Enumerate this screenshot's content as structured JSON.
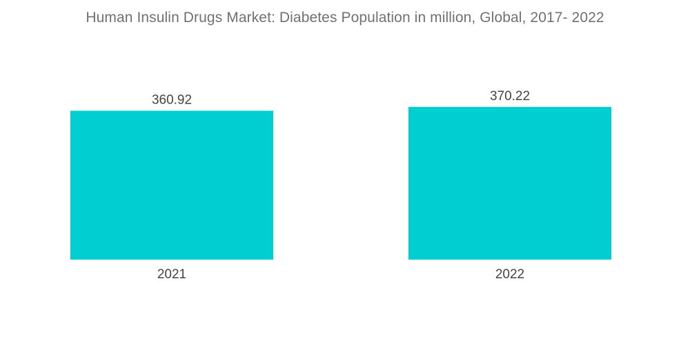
{
  "chart_data": {
    "type": "bar",
    "title": "Human Insulin Drugs Market: Diabetes Population in million, Global, 2017- 2022",
    "categories": [
      "2021",
      "2022"
    ],
    "values": [
      360.92,
      370.22
    ],
    "value_labels": [
      "360.92",
      "370.22"
    ],
    "xlabel": "",
    "ylabel": "",
    "ylim": [
      0,
      390
    ],
    "grid": false,
    "legend": "none",
    "bar_color": "#00CED1"
  }
}
